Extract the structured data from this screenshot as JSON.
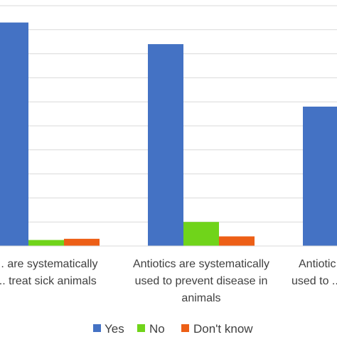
{
  "chart_data": {
    "type": "bar",
    "categories": [
      [
        "... are systematically",
        "... treat sick animals"
      ],
      [
        "Antiotics are systematically",
        "used to prevent disease in",
        "animals"
      ],
      [
        "Antiotic...",
        "used to ..."
      ]
    ],
    "series": [
      {
        "name": "Yes",
        "color": "#4472C4",
        "values": [
          93,
          84,
          58
        ]
      },
      {
        "name": "No",
        "color": "#70D41A",
        "values": [
          2.5,
          10,
          0
        ]
      },
      {
        "name": "Don't know",
        "color": "#ED5F16",
        "values": [
          3,
          4,
          0
        ]
      }
    ],
    "ylim": [
      0,
      100
    ],
    "grid": true,
    "legend": "bottom"
  }
}
